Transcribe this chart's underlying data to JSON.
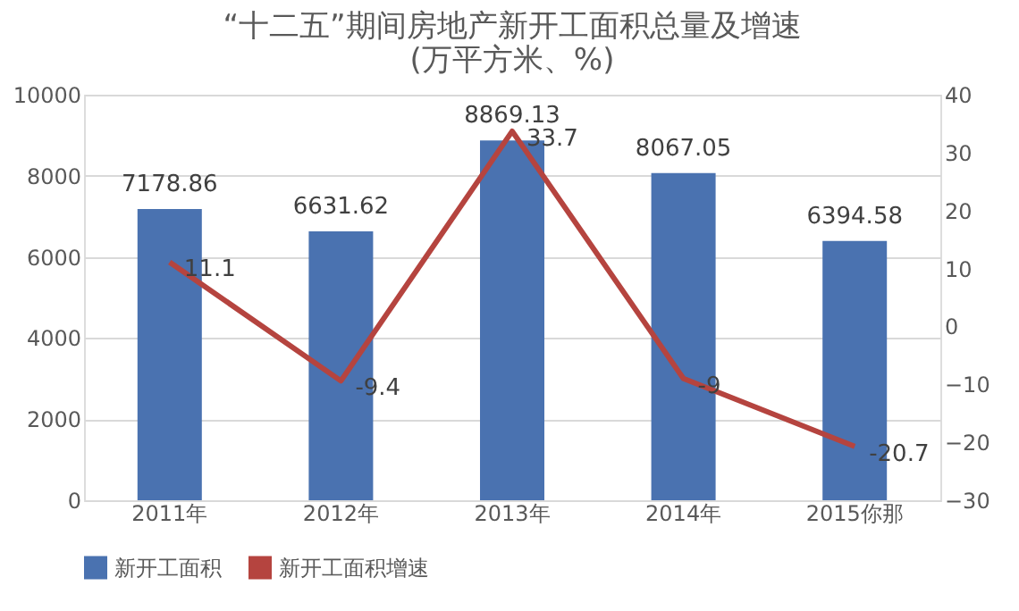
{
  "chart_data": {
    "type": "bar",
    "title": [
      "“十二五”期间房地产新开工面积总量及增速",
      "(万平方米、%)"
    ],
    "categories": [
      "2011年",
      "2012年",
      "2013年",
      "2014年",
      "2015你那"
    ],
    "series": [
      {
        "name": "新开工面积",
        "color": "#4a72b0",
        "values": [
          7178.86,
          6631.62,
          8869.13,
          8067.05,
          6394.58
        ]
      },
      {
        "name": "新开工面积增速",
        "type": "line",
        "axis": "y2",
        "color": "#b5443f",
        "values": [
          11.1,
          -9.4,
          33.7,
          -9,
          -20.7
        ]
      }
    ],
    "ylim": [
      0,
      10000
    ],
    "yticks": [
      0,
      2000,
      4000,
      6000,
      8000,
      10000
    ],
    "y2lim": [
      -30,
      40
    ],
    "y2ticks": [
      -30,
      -20,
      -10,
      0,
      10,
      20,
      30,
      40
    ],
    "data_labels": true,
    "grid": "y",
    "legend": "bottom",
    "marker": "none"
  }
}
